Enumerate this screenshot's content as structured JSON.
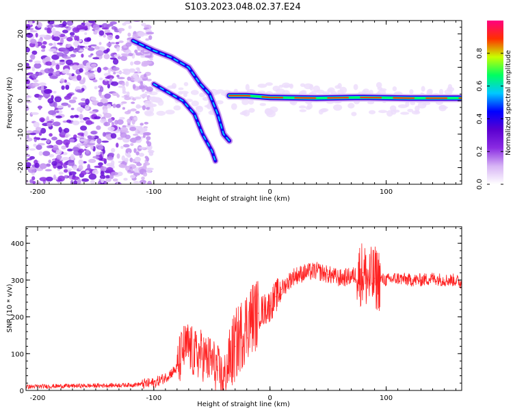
{
  "title": "S103.2023.048.02.37.E24",
  "chart_data": [
    {
      "type": "heatmap",
      "xlabel": "Height of straight line (km)",
      "ylabel": "Frequency (Hz)",
      "xlim": [
        -210,
        165
      ],
      "ylim": [
        -25,
        24
      ],
      "xticks": [
        -200,
        -100,
        0,
        100
      ],
      "yticks": [
        20,
        10,
        0,
        -10,
        -20
      ],
      "colorbar": {
        "label": "Normalized spectral amplitude",
        "ticks": [
          "0.0",
          "0.2",
          "0.4",
          "0.6",
          "0.8"
        ],
        "range": [
          0,
          1
        ],
        "colors": [
          "#ffffff",
          "#d7b4f5",
          "#8a2be2",
          "#5a00d0",
          "#0000ff",
          "#00c8ff",
          "#00ff60",
          "#c8ff00",
          "#ff3000",
          "#ff0080"
        ]
      },
      "features": [
        {
          "name": "noise-scatter",
          "x": [
            -210,
            -110
          ],
          "y": [
            -25,
            24
          ]
        },
        {
          "name": "descending-track-1",
          "points": [
            [
              -118,
              18
            ],
            [
              -100,
              15
            ],
            [
              -85,
              13
            ],
            [
              -70,
              10
            ],
            [
              -60,
              5
            ],
            [
              -52,
              2
            ],
            [
              -45,
              -4
            ],
            [
              -40,
              -10
            ],
            [
              -35,
              -12
            ]
          ]
        },
        {
          "name": "descending-track-2",
          "points": [
            [
              -100,
              5
            ],
            [
              -85,
              2
            ],
            [
              -75,
              0
            ],
            [
              -65,
              -4
            ],
            [
              -58,
              -10
            ],
            [
              -50,
              -15
            ],
            [
              -47,
              -18
            ]
          ]
        },
        {
          "name": "steady-tone",
          "points": [
            [
              -35,
              1.5
            ],
            [
              -20,
              1.5
            ],
            [
              0,
              1
            ],
            [
              40,
              0.8
            ],
            [
              80,
              1
            ],
            [
              120,
              0.8
            ],
            [
              165,
              0.8
            ]
          ]
        }
      ]
    },
    {
      "type": "line",
      "xlabel": "Height of straight line (km)",
      "ylabel": "SNR (10 * v/v)",
      "xlim": [
        -210,
        165
      ],
      "ylim": [
        0,
        445
      ],
      "xticks": [
        -200,
        -100,
        0,
        100
      ],
      "yticks": [
        0,
        100,
        200,
        300,
        400
      ],
      "color": "#ff2020",
      "series": [
        {
          "x": [
            -210,
            -180,
            -150,
            -120,
            -100,
            -90,
            -80,
            -75,
            -70,
            -65,
            -60,
            -55,
            -50,
            -45,
            -40,
            -35,
            -30,
            -25,
            -20,
            -15,
            -10,
            -5,
            0,
            5,
            10,
            20,
            30,
            40,
            50,
            60,
            70,
            80,
            85,
            90,
            100,
            110,
            120,
            130,
            140,
            150,
            160,
            165
          ],
          "y": [
            10,
            12,
            13,
            15,
            20,
            35,
            60,
            110,
            120,
            95,
            100,
            85,
            80,
            55,
            25,
            80,
            120,
            150,
            180,
            200,
            210,
            220,
            230,
            255,
            275,
            310,
            320,
            325,
            315,
            305,
            310,
            320,
            300,
            305,
            300,
            305,
            300,
            300,
            305,
            300,
            300,
            290
          ]
        }
      ]
    }
  ]
}
